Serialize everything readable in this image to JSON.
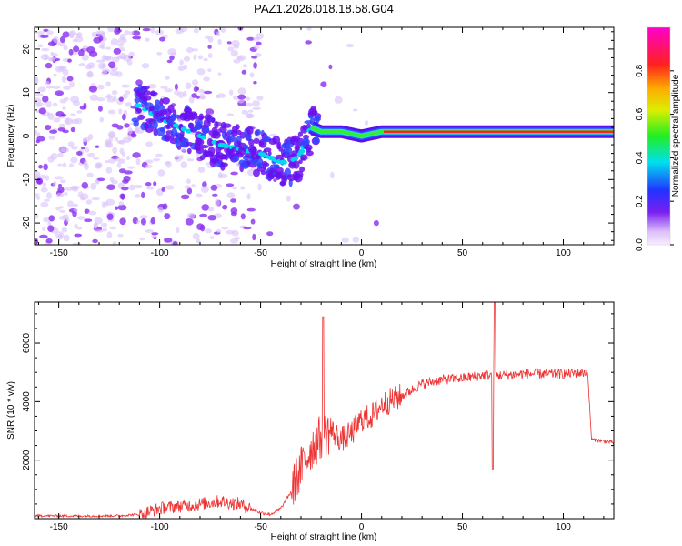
{
  "title": "PAZ1.2026.018.18.58.G04",
  "chart_data": [
    {
      "type": "heatmap",
      "xlabel": "Height of straight line (km)",
      "ylabel": "Frequency (Hz)",
      "xlim": [
        -162,
        125
      ],
      "ylim": [
        -25,
        25
      ],
      "xticks": [
        -150,
        -100,
        -50,
        0,
        50,
        100
      ],
      "yticks": [
        -20,
        -10,
        0,
        10,
        20
      ],
      "colorbar": {
        "label": "Normalized spectral amplitude",
        "range": [
          0,
          1
        ],
        "ticks": [
          "0.0",
          "0.2",
          "0.4",
          "0.6",
          "0.8"
        ]
      },
      "ridge": {
        "x": [
          -110,
          -100,
          -90,
          -80,
          -70,
          -60,
          -50,
          -40,
          -35,
          -30,
          -25,
          -20,
          -10,
          0,
          10,
          50,
          100,
          125
        ],
        "freq": [
          7,
          4,
          2,
          0,
          -2,
          -3,
          -4,
          -6,
          -6,
          -4,
          2,
          1,
          1,
          0,
          1,
          1,
          1,
          1
        ]
      }
    },
    {
      "type": "line",
      "xlabel": "Height of straight line (km)",
      "ylabel": "SNR (10 * v/v)",
      "xlim": [
        -162,
        125
      ],
      "ylim": [
        0,
        7400
      ],
      "xticks": [
        -150,
        -100,
        -50,
        0,
        50,
        100
      ],
      "yticks": [
        2000,
        4000,
        6000
      ],
      "series": [
        {
          "name": "SNR",
          "color": "#ee3333",
          "x": [
            -162,
            -140,
            -120,
            -110,
            -100,
            -80,
            -70,
            -60,
            -50,
            -45,
            -40,
            -35,
            -30,
            -25,
            -20,
            -15,
            -10,
            -5,
            0,
            5,
            10,
            20,
            30,
            40,
            50,
            60,
            65,
            70,
            80,
            90,
            100,
            112,
            114,
            120,
            125
          ],
          "y": [
            100,
            90,
            100,
            150,
            350,
            500,
            600,
            500,
            200,
            150,
            350,
            900,
            1700,
            2400,
            2800,
            3000,
            2700,
            2900,
            3400,
            3500,
            3900,
            4200,
            4600,
            4750,
            4800,
            4900,
            4900,
            4900,
            4950,
            4950,
            4950,
            5000,
            2700,
            2650,
            2600
          ]
        }
      ],
      "annotations": [
        {
          "x": -19,
          "peak": 6900
        },
        {
          "x": 66,
          "peak": 7400,
          "dip": 1700
        }
      ]
    }
  ]
}
